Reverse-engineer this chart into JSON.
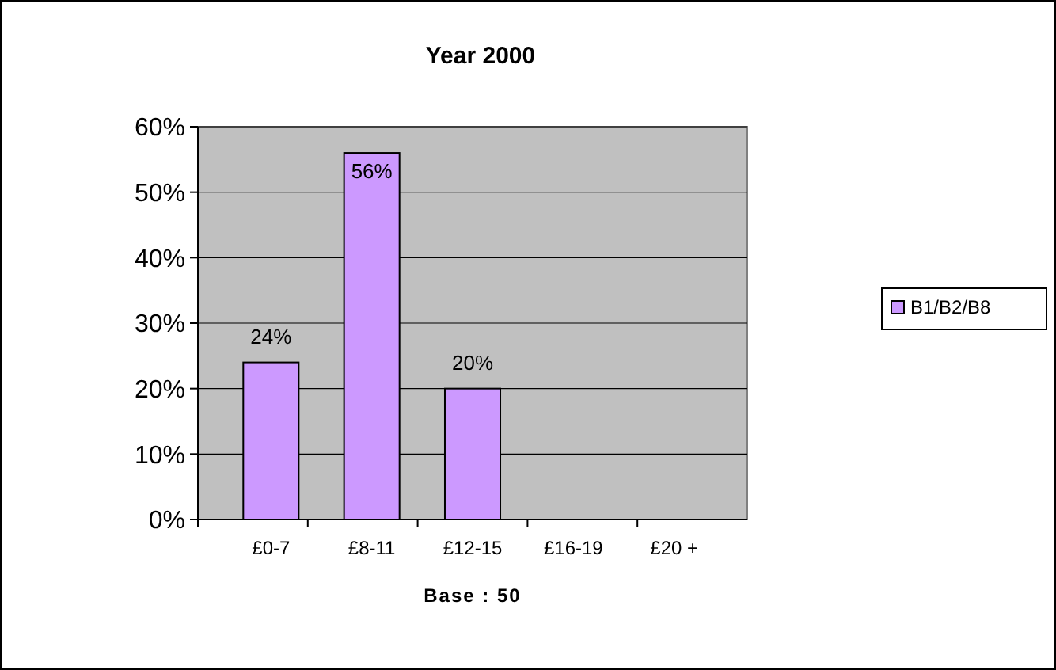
{
  "chart_data": {
    "type": "bar",
    "title": "Year 2000",
    "xlabel": "Base : 50",
    "categories": [
      "£0-7",
      "£8-11",
      "£12-15",
      "£16-19",
      "£20 +"
    ],
    "series": [
      {
        "name": "B1/B2/B8",
        "color": "#cc99ff",
        "values": [
          24,
          56,
          20,
          null,
          null
        ],
        "value_labels": [
          "24%",
          "56%",
          "20%",
          null,
          null
        ]
      }
    ],
    "ylim": [
      0,
      60
    ],
    "yticks": [
      {
        "value": 0,
        "label": "0%"
      },
      {
        "value": 10,
        "label": "10%"
      },
      {
        "value": 20,
        "label": "20%"
      },
      {
        "value": 30,
        "label": "30%"
      },
      {
        "value": 40,
        "label": "40%"
      },
      {
        "value": 50,
        "label": "50%"
      },
      {
        "value": 60,
        "label": "60%"
      }
    ],
    "grid": "y",
    "legend": "right"
  }
}
